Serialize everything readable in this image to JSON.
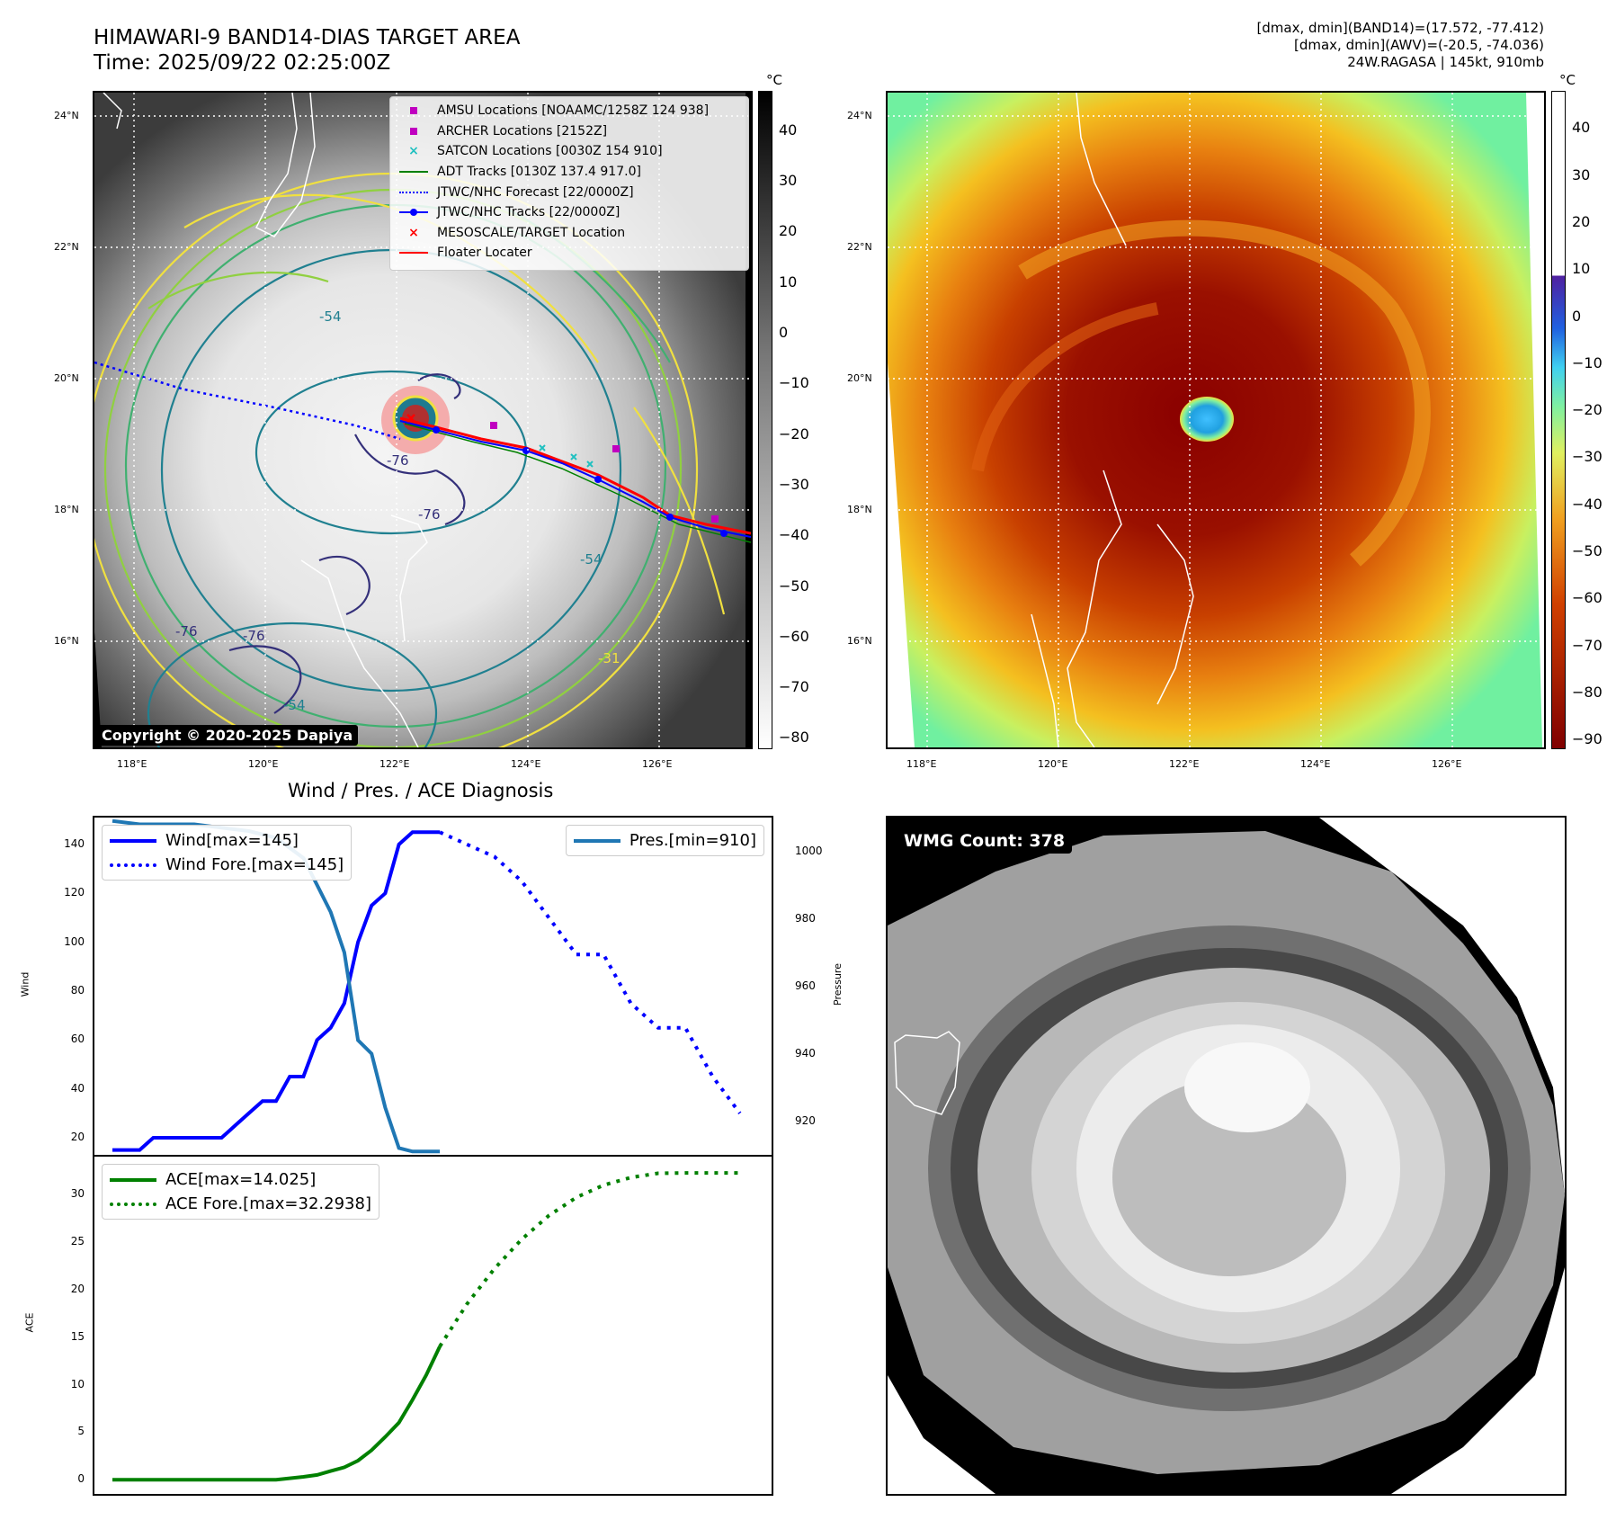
{
  "header": {
    "title_line1": "HIMAWARI-9 BAND14-DIAS TARGET AREA",
    "title_line2": "Time: 2025/09/22 02:25:00Z",
    "info_line1": "[dmax, dmin](BAND14)=(17.572, -77.412)",
    "info_line2": "[dmax, dmin](AWV)=(-20.5, -74.036)",
    "info_line3": "24W.RAGASA | 145kt, 910mb"
  },
  "map": {
    "lat_labels": [
      "24°N",
      "22°N",
      "20°N",
      "18°N",
      "16°N"
    ],
    "lon_labels": [
      "118°E",
      "120°E",
      "122°E",
      "124°E",
      "126°E"
    ],
    "copyright": "Copyright © 2020-2025 Dapiya",
    "contour_labels": [
      "-76",
      "-76",
      "-76",
      "-76",
      "-54",
      "-54",
      "-54",
      "-31"
    ],
    "colorbar_unit": "°C",
    "colorbar_ticks": [
      "40",
      "30",
      "20",
      "10",
      "0",
      "−10",
      "−20",
      "−30",
      "−40",
      "−50",
      "−60",
      "−70",
      "−80"
    ],
    "legend": [
      {
        "label": "AMSU Locations [NOAAMC/1258Z 124 938]",
        "color": "#c000c0",
        "icon": "square-marker-icon"
      },
      {
        "label": "ARCHER Locations [2152Z]",
        "color": "#c000c0",
        "icon": "square-marker-icon"
      },
      {
        "label": "SATCON Locations [0030Z 154 910]",
        "color": "#20c0c0",
        "icon": "x-marker-icon"
      },
      {
        "label": "ADT Tracks [0130Z 137.4 917.0]",
        "color": "#008000",
        "icon": "line-icon"
      },
      {
        "label": "JTWC/NHC Forecast [22/0000Z]",
        "color": "#0000ff",
        "icon": "dotted-line-icon"
      },
      {
        "label": "JTWC/NHC Tracks [22/0000Z]",
        "color": "#0000ff",
        "icon": "line-dot-icon"
      },
      {
        "label": "MESOSCALE/TARGET Location",
        "color": "#ff0000",
        "icon": "x-marker-icon"
      },
      {
        "label": "Floater Locater",
        "color": "#ff0000",
        "icon": "line-icon"
      }
    ]
  },
  "awv": {
    "lat_labels": [
      "24°N",
      "22°N",
      "20°N",
      "18°N",
      "16°N"
    ],
    "lon_labels": [
      "118°E",
      "120°E",
      "122°E",
      "124°E",
      "126°E"
    ],
    "colorbar_unit": "°C",
    "colorbar_ticks": [
      "40",
      "30",
      "20",
      "10",
      "0",
      "−10",
      "−20",
      "−30",
      "−40",
      "−50",
      "−60",
      "−70",
      "−80",
      "−90"
    ]
  },
  "wmg": {
    "count_label": "WMG Count: 378"
  },
  "chart_data": [
    {
      "type": "line",
      "title": "Wind / Pres. / ACE Diagnosis",
      "ylabel": "Wind",
      "ylabel_right": "Pressure",
      "ylim": [
        13,
        151
      ],
      "ylim_right": [
        910,
        1010
      ],
      "yticks": [
        "140",
        "120",
        "100",
        "80",
        "60",
        "40",
        "20"
      ],
      "yticks_right": [
        "1000",
        "980",
        "960",
        "940",
        "920"
      ],
      "series": [
        {
          "name": "Wind[max=145]",
          "style": "solid",
          "color": "#0000ff",
          "axis": "left",
          "x": [
            0,
            1,
            2,
            3,
            4,
            5,
            6,
            7,
            8,
            9,
            10,
            11,
            12,
            13,
            14,
            15,
            16,
            17,
            18,
            19,
            20,
            21,
            22,
            23,
            24
          ],
          "values": [
            15,
            15,
            15,
            20,
            20,
            20,
            20,
            20,
            20,
            25,
            30,
            35,
            35,
            45,
            45,
            60,
            65,
            75,
            100,
            115,
            120,
            140,
            145,
            145,
            145
          ]
        },
        {
          "name": "Wind Fore.[max=145]",
          "style": "dotted",
          "color": "#0000ff",
          "axis": "left",
          "x": [
            24,
            26,
            28,
            30,
            32,
            34,
            35,
            36,
            38,
            40,
            42,
            44,
            46
          ],
          "values": [
            145,
            140,
            135,
            125,
            110,
            95,
            95,
            95,
            75,
            65,
            65,
            45,
            30
          ]
        },
        {
          "name": "Pres.[min=910]",
          "style": "solid",
          "color": "#1f77b4",
          "axis": "right",
          "x": [
            0,
            2,
            4,
            6,
            8,
            10,
            12,
            14,
            15,
            16,
            17,
            18,
            19,
            20,
            21,
            22,
            23,
            24
          ],
          "values": [
            1009,
            1008,
            1008,
            1008,
            1007,
            1006,
            1004,
            998,
            990,
            982,
            970,
            944,
            940,
            924,
            912,
            911,
            911,
            911
          ]
        }
      ]
    },
    {
      "type": "line",
      "ylabel": "ACE",
      "ylim": [
        -1.5,
        34
      ],
      "yticks": [
        "30",
        "25",
        "20",
        "15",
        "10",
        "5",
        "0"
      ],
      "series": [
        {
          "name": "ACE[max=14.025]",
          "style": "solid",
          "color": "#008000",
          "x": [
            0,
            2,
            4,
            6,
            8,
            10,
            12,
            14,
            15,
            16,
            17,
            18,
            19,
            20,
            21,
            22,
            23,
            24
          ],
          "values": [
            0,
            0,
            0,
            0,
            0,
            0,
            0,
            0.3,
            0.5,
            0.9,
            1.3,
            2.0,
            3.1,
            4.5,
            6.0,
            8.4,
            11.0,
            14.025
          ]
        },
        {
          "name": "ACE Fore.[max=32.2938]",
          "style": "dotted",
          "color": "#008000",
          "x": [
            24,
            26,
            28,
            30,
            32,
            34,
            36,
            38,
            40,
            42,
            44,
            46
          ],
          "values": [
            14.025,
            18.5,
            22.2,
            25.3,
            27.8,
            29.7,
            31.0,
            31.8,
            32.25,
            32.29,
            32.29,
            32.29
          ]
        }
      ]
    }
  ]
}
